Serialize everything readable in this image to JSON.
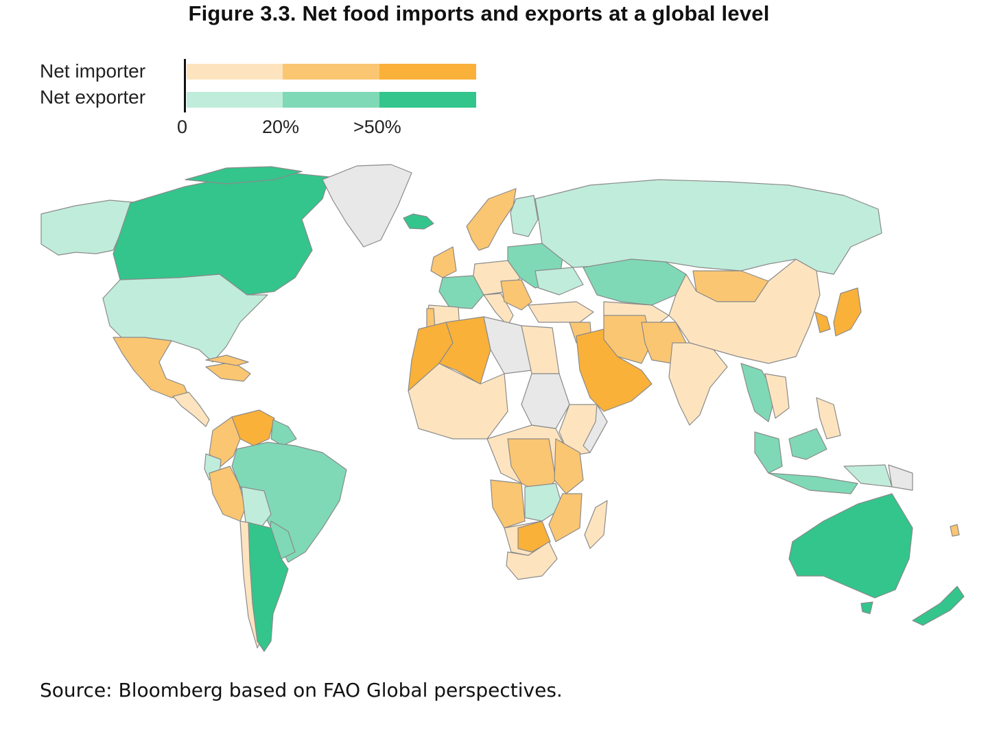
{
  "title": "Figure 3.3. Net food imports and exports at a global level",
  "legend": {
    "rows": [
      {
        "label": "Net importer",
        "colors": [
          "#fde4bf",
          "#fbc671",
          "#f9b13a"
        ]
      },
      {
        "label": "Net exporter",
        "colors": [
          "#c0ecdb",
          "#7fd9b6",
          "#33c58c"
        ]
      }
    ],
    "ticks": [
      "0",
      "20%",
      ">50%"
    ]
  },
  "colors": {
    "imp1": "#fde4bf",
    "imp2": "#fbc671",
    "imp3": "#f9b13a",
    "exp1": "#c0ecdb",
    "exp2": "#7fd9b6",
    "exp3": "#33c58c",
    "nodata": "#e8e8e8"
  },
  "source": "Source: Bloomberg based on FAO Global perspectives."
}
